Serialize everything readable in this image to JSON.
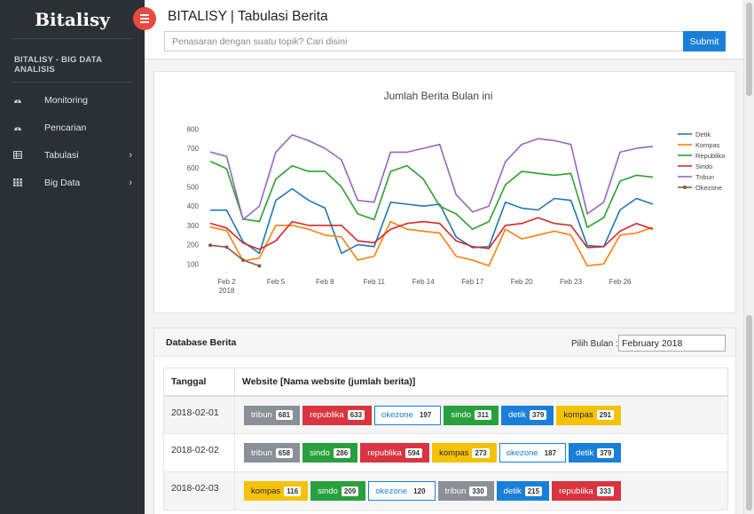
{
  "brand": "Bitalisy",
  "page_title": "BITALISY | Tabulasi Berita",
  "search": {
    "placeholder": "Penasaran dengan suatu topik? Cari disini",
    "value": "",
    "submit_label": "Submit"
  },
  "sidebar": {
    "section_title": "BITALISY - BIG DATA ANALISIS",
    "items": [
      {
        "label": "Monitoring",
        "icon": "dashboard-icon",
        "has_submenu": false
      },
      {
        "label": "Pencarian",
        "icon": "dashboard-icon",
        "has_submenu": false
      },
      {
        "label": "Tabulasi",
        "icon": "table-icon",
        "has_submenu": true
      },
      {
        "label": "Big Data",
        "icon": "grid-icon",
        "has_submenu": true
      }
    ]
  },
  "chart_data": {
    "type": "line",
    "title": "Jumlah Berita Bulan ini",
    "xlabel": "",
    "ylabel": "",
    "x": [
      "2018-02-01",
      "2018-02-02",
      "2018-02-03",
      "2018-02-04",
      "2018-02-05",
      "2018-02-06",
      "2018-02-07",
      "2018-02-08",
      "2018-02-09",
      "2018-02-10",
      "2018-02-11",
      "2018-02-12",
      "2018-02-13",
      "2018-02-14",
      "2018-02-15",
      "2018-02-16",
      "2018-02-17",
      "2018-02-18",
      "2018-02-19",
      "2018-02-20",
      "2018-02-21",
      "2018-02-22",
      "2018-02-23",
      "2018-02-24",
      "2018-02-25",
      "2018-02-26",
      "2018-02-27",
      "2018-02-28"
    ],
    "x_ticks": [
      {
        "label": "Feb 2",
        "sub": "2018",
        "date": "2018-02-02"
      },
      {
        "label": "Feb 5",
        "sub": "",
        "date": "2018-02-05"
      },
      {
        "label": "Feb 8",
        "sub": "",
        "date": "2018-02-08"
      },
      {
        "label": "Feb 11",
        "sub": "",
        "date": "2018-02-11"
      },
      {
        "label": "Feb 14",
        "sub": "",
        "date": "2018-02-14"
      },
      {
        "label": "Feb 17",
        "sub": "",
        "date": "2018-02-17"
      },
      {
        "label": "Feb 20",
        "sub": "",
        "date": "2018-02-20"
      },
      {
        "label": "Feb 23",
        "sub": "",
        "date": "2018-02-23"
      },
      {
        "label": "Feb 26",
        "sub": "",
        "date": "2018-02-26"
      }
    ],
    "y_ticks": [
      100,
      200,
      300,
      400,
      500,
      600,
      700,
      800
    ],
    "ylim": [
      60,
      820
    ],
    "grid": false,
    "legend_position": "right",
    "series": [
      {
        "name": "Detik",
        "color": "#1f77b4",
        "markers": false,
        "values": [
          379,
          379,
          215,
          155,
          430,
          490,
          430,
          390,
          155,
          200,
          190,
          420,
          410,
          400,
          410,
          240,
          185,
          190,
          420,
          390,
          380,
          440,
          430,
          195,
          190,
          380,
          440,
          410
        ]
      },
      {
        "name": "Kompas",
        "color": "#ff7f0e",
        "markers": false,
        "values": [
          291,
          273,
          116,
          130,
          300,
          300,
          280,
          250,
          240,
          120,
          140,
          320,
          280,
          270,
          260,
          140,
          120,
          90,
          280,
          230,
          250,
          270,
          250,
          90,
          100,
          250,
          260,
          290
        ]
      },
      {
        "name": "Republika",
        "color": "#2ca02c",
        "markers": false,
        "values": [
          633,
          594,
          333,
          320,
          540,
          610,
          580,
          580,
          500,
          360,
          330,
          580,
          610,
          540,
          400,
          360,
          280,
          320,
          510,
          580,
          570,
          560,
          570,
          290,
          340,
          530,
          560,
          550
        ]
      },
      {
        "name": "Sindo",
        "color": "#d62728",
        "markers": false,
        "values": [
          311,
          286,
          209,
          175,
          220,
          320,
          300,
          300,
          300,
          220,
          210,
          280,
          310,
          320,
          310,
          220,
          190,
          180,
          300,
          310,
          340,
          310,
          300,
          185,
          190,
          270,
          310,
          280
        ]
      },
      {
        "name": "Tribun",
        "color": "#9467bd",
        "markers": false,
        "values": [
          681,
          658,
          330,
          400,
          680,
          770,
          740,
          700,
          640,
          430,
          420,
          680,
          680,
          700,
          720,
          460,
          370,
          400,
          630,
          720,
          750,
          740,
          720,
          360,
          420,
          680,
          700,
          710
        ]
      },
      {
        "name": "Okezone",
        "color": "#8c564b",
        "markers": true,
        "values": [
          197,
          187,
          120,
          90,
          null,
          null,
          null,
          null,
          null,
          null,
          null,
          null,
          null,
          null,
          null,
          null,
          null,
          null,
          null,
          null,
          null,
          null,
          null,
          null,
          null,
          null,
          null,
          null
        ]
      }
    ]
  },
  "database": {
    "title": "Database Berita",
    "month_label": "Pilih Bulan :",
    "month_value": "February 2018",
    "columns": [
      "Tanggal",
      "Website [Nama website (jumlah berita)]"
    ],
    "rows": [
      {
        "date": "2018-02-01",
        "sites": [
          {
            "name": "tribun",
            "count": "681"
          },
          {
            "name": "republika",
            "count": "633"
          },
          {
            "name": "okezone",
            "count": "197"
          },
          {
            "name": "sindo",
            "count": "311"
          },
          {
            "name": "detik",
            "count": "379"
          },
          {
            "name": "kompas",
            "count": "291"
          }
        ]
      },
      {
        "date": "2018-02-02",
        "sites": [
          {
            "name": "tribun",
            "count": "658"
          },
          {
            "name": "sindo",
            "count": "286"
          },
          {
            "name": "republika",
            "count": "594"
          },
          {
            "name": "kompas",
            "count": "273"
          },
          {
            "name": "okezone",
            "count": "187"
          },
          {
            "name": "detik",
            "count": "379"
          }
        ]
      },
      {
        "date": "2018-02-03",
        "sites": [
          {
            "name": "kompas",
            "count": "116"
          },
          {
            "name": "sindo",
            "count": "209"
          },
          {
            "name": "okezone",
            "count": "120"
          },
          {
            "name": "tribun",
            "count": "330"
          },
          {
            "name": "detik",
            "count": "215"
          },
          {
            "name": "republika",
            "count": "333"
          }
        ]
      }
    ]
  }
}
